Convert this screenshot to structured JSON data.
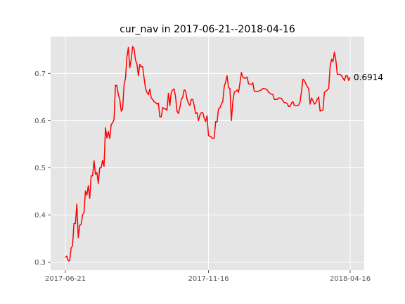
{
  "chart_data": {
    "type": "line",
    "title": "cur_nav in 2017-06-21--2018-04-16",
    "xlabel": "",
    "ylabel": "",
    "x_tick_labels": [
      "2017-06-21",
      "2017-11-16",
      "2018-04-16"
    ],
    "y_tick_labels": [
      "0.3",
      "0.4",
      "0.5",
      "0.6",
      "0.7"
    ],
    "y_ticks": [
      0.3,
      0.4,
      0.5,
      0.6,
      0.7
    ],
    "ylim": [
      0.283,
      0.778
    ],
    "grid": true,
    "background_color": "#e5e5e5",
    "grid_color": "#ffffff",
    "line_color": "#ff0000",
    "end_annotation": "0.6914",
    "series": [
      {
        "values": [
          0.31,
          0.313,
          0.303,
          0.303,
          0.33,
          0.335,
          0.382,
          0.382,
          0.423,
          0.352,
          0.378,
          0.38,
          0.4,
          0.405,
          0.451,
          0.442,
          0.462,
          0.435,
          0.483,
          0.483,
          0.515,
          0.486,
          0.49,
          0.467,
          0.5,
          0.5,
          0.516,
          0.503,
          0.585,
          0.563,
          0.577,
          0.562,
          0.592,
          0.595,
          0.603,
          0.675,
          0.674,
          0.655,
          0.645,
          0.62,
          0.625,
          0.675,
          0.69,
          0.735,
          0.755,
          0.712,
          0.73,
          0.757,
          0.752,
          0.728,
          0.72,
          0.695,
          0.719,
          0.714,
          0.714,
          0.69,
          0.668,
          0.66,
          0.655,
          0.667,
          0.648,
          0.645,
          0.64,
          0.638,
          0.635,
          0.637,
          0.608,
          0.608,
          0.628,
          0.625,
          0.625,
          0.622,
          0.658,
          0.632,
          0.66,
          0.665,
          0.667,
          0.65,
          0.62,
          0.615,
          0.628,
          0.645,
          0.65,
          0.665,
          0.663,
          0.645,
          0.637,
          0.632,
          0.645,
          0.645,
          0.632,
          0.615,
          0.617,
          0.6,
          0.612,
          0.617,
          0.617,
          0.605,
          0.598,
          0.61,
          0.568,
          0.567,
          0.565,
          0.562,
          0.563,
          0.598,
          0.597,
          0.625,
          0.627,
          0.635,
          0.64,
          0.672,
          0.682,
          0.695,
          0.67,
          0.668,
          0.6,
          0.64,
          0.66,
          0.662,
          0.665,
          0.66,
          0.68,
          0.702,
          0.692,
          0.69,
          0.69,
          0.692,
          0.678,
          0.677,
          0.677,
          0.68,
          0.662,
          0.662,
          0.662,
          0.662,
          0.664,
          0.665,
          0.668,
          0.668,
          0.667,
          0.665,
          0.66,
          0.658,
          0.656,
          0.655,
          0.645,
          0.645,
          0.645,
          0.648,
          0.648,
          0.647,
          0.642,
          0.638,
          0.638,
          0.636,
          0.63,
          0.63,
          0.637,
          0.64,
          0.632,
          0.632,
          0.632,
          0.633,
          0.64,
          0.662,
          0.688,
          0.685,
          0.678,
          0.672,
          0.668,
          0.635,
          0.648,
          0.642,
          0.635,
          0.638,
          0.645,
          0.65,
          0.62,
          0.622,
          0.622,
          0.66,
          0.662,
          0.665,
          0.668,
          0.715,
          0.73,
          0.725,
          0.745,
          0.728,
          0.698,
          0.698,
          0.698,
          0.695,
          0.69,
          0.685,
          0.695,
          0.695,
          0.685,
          0.6914
        ]
      }
    ]
  }
}
